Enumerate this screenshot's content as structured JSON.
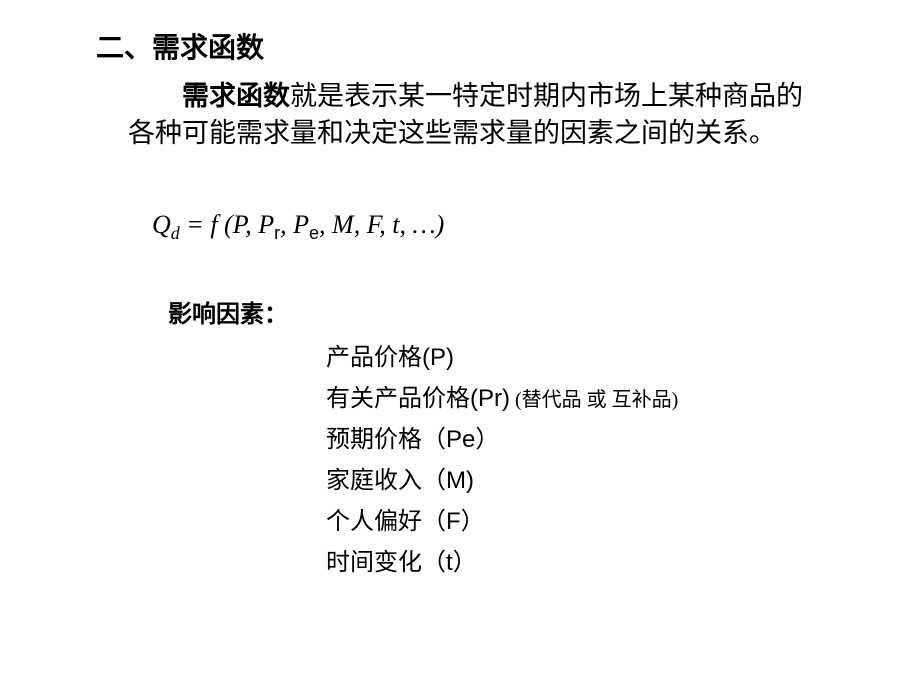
{
  "heading": "二、需求函数",
  "definition": {
    "term": "需求函数",
    "text": "就是表示某一特定时期内市场上某种商品的各种可能需求量和决定这些需求量的因素之间的关系。"
  },
  "formula": {
    "Q": "Q",
    "d": "d",
    "eq": " = f (P",
    "comma": ", ",
    "P1": "P",
    "r": "r",
    "P2": "P",
    "e": "e",
    "M": "M",
    "F": "F",
    "t": "t",
    "tail": ", …)"
  },
  "factors_title": "影响因素：",
  "factors": [
    {
      "label": "产品价格",
      "symbol": "(P)",
      "note": ""
    },
    {
      "label": "有关产品价格",
      "symbol": "(Pr)",
      "note": " (替代品 或 互补品)"
    },
    {
      "label": "预期价格",
      "symbol": "（Pe）",
      "note": ""
    },
    {
      "label": "家庭收入",
      "symbol": "（M)",
      "note": ""
    },
    {
      "label": "个人偏好",
      "symbol": "（F）",
      "note": ""
    },
    {
      "label": "时间变化",
      "symbol": "（t）",
      "note": ""
    }
  ]
}
